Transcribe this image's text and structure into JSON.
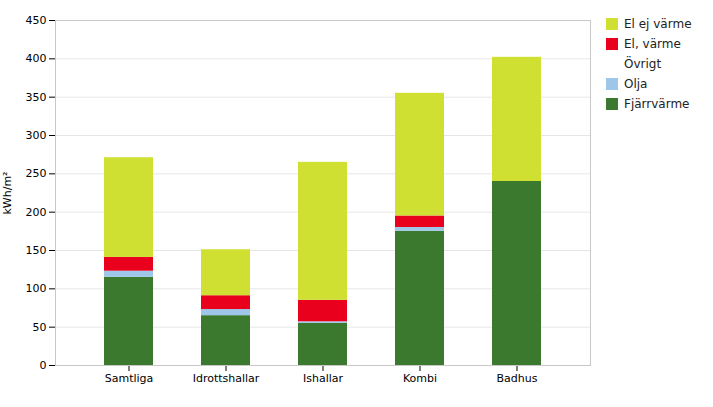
{
  "chart_data": {
    "type": "bar",
    "stacked": true,
    "ylabel": "kWh/m²",
    "categories": [
      "Samtliga",
      "Idrottshallar",
      "Ishallar",
      "Kombi",
      "Badhus"
    ],
    "series": [
      {
        "name": "Fjärrvärme",
        "color": "#3b7a2e",
        "values": [
          115,
          65,
          55,
          175,
          240
        ]
      },
      {
        "name": "Olja",
        "color": "#9ec6e8",
        "values": [
          8,
          8,
          2,
          5,
          0
        ]
      },
      {
        "name": "Övrigt",
        "values": [
          null,
          null,
          null,
          null,
          null
        ]
      },
      {
        "name": "El, värme",
        "color": "#e8001c",
        "values": [
          18,
          18,
          28,
          15,
          0
        ]
      },
      {
        "name": "El ej värme",
        "color": "#cfe033",
        "values": [
          130,
          60,
          180,
          160,
          162
        ]
      }
    ],
    "ylim": [
      0,
      450
    ],
    "yticks": [
      0,
      50,
      100,
      150,
      200,
      250,
      300,
      350,
      400,
      450
    ],
    "grid": true,
    "legend": "right"
  }
}
